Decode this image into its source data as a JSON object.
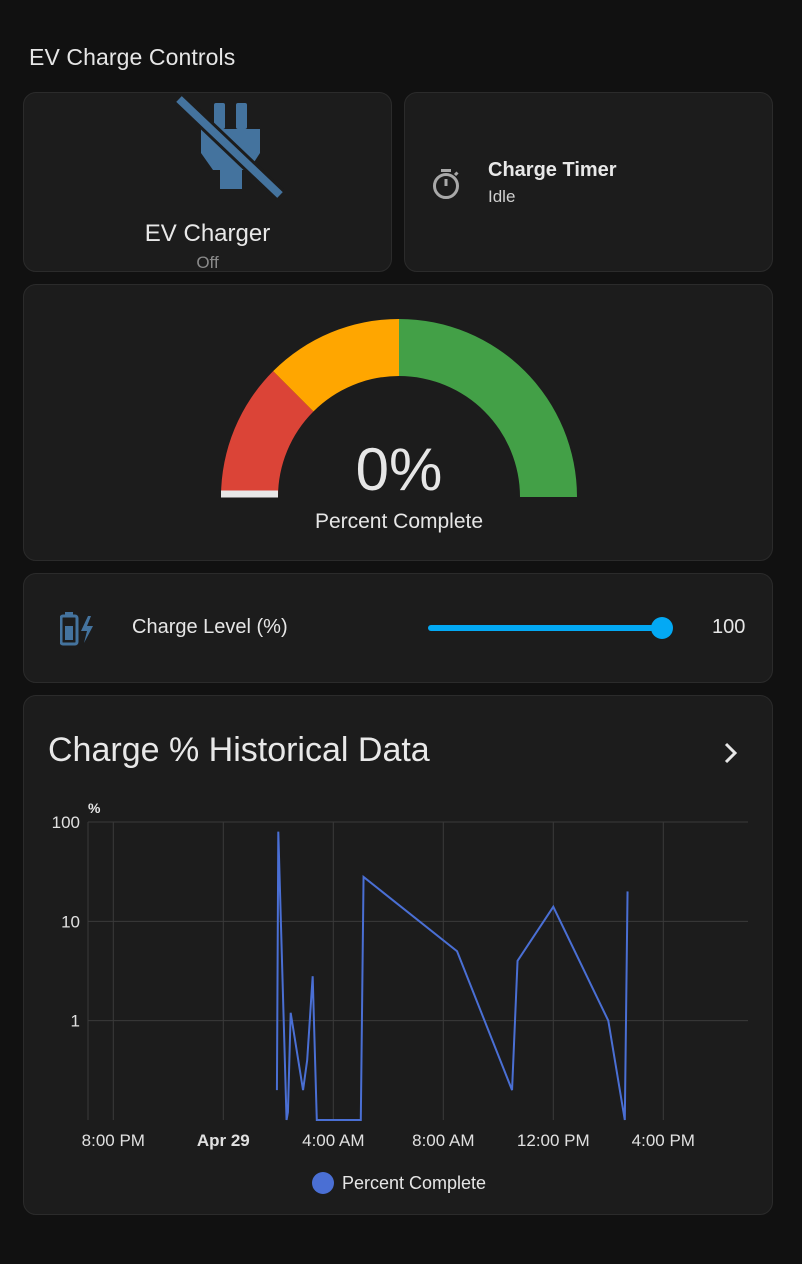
{
  "section_title": "EV Charge Controls",
  "charger": {
    "name": "EV Charger",
    "state": "Off",
    "icon": "power-plug-off-icon",
    "color": "#44739e"
  },
  "timer": {
    "name": "Charge Timer",
    "state": "Idle",
    "icon": "timer-outline-icon"
  },
  "gauge": {
    "value": "0%",
    "fraction": 0,
    "name": "Percent Complete",
    "severity_colors": {
      "red": "#db4437",
      "yellow": "#ffa600",
      "green": "#43a047"
    },
    "segment_breaks": [
      0,
      0.25,
      0.5,
      1.0
    ]
  },
  "slider": {
    "label": "Charge Level (%)",
    "value": "100",
    "fraction": 0.99,
    "icon": "battery-charging-icon",
    "accent": "#03a9f4"
  },
  "history": {
    "title": "Charge % Historical Data",
    "legend": "Percent Complete",
    "line_color": "#4a6fd4"
  },
  "chart_data": {
    "type": "line",
    "y_scale": "log",
    "ylabel": "%",
    "y_ticks": [
      "100",
      "10",
      "1"
    ],
    "x_ticks": [
      "8:00 PM",
      "Apr 29",
      "4:00 AM",
      "8:00 AM",
      "12:00 PM",
      "4:00 PM"
    ],
    "grid": true,
    "legend_position": "bottom",
    "series": [
      {
        "name": "Percent Complete",
        "points": [
          [
            3.95,
            0.2
          ],
          [
            4.0,
            80
          ],
          [
            4.3,
            0.1
          ],
          [
            4.35,
            0.12
          ],
          [
            4.45,
            1.2
          ],
          [
            4.9,
            0.2
          ],
          [
            5.05,
            0.4
          ],
          [
            5.25,
            2.8
          ],
          [
            5.4,
            0.1
          ],
          [
            6.6,
            0.1
          ],
          [
            7.0,
            0.1
          ],
          [
            7.1,
            28
          ],
          [
            10.5,
            5
          ],
          [
            12.5,
            0.2
          ],
          [
            12.7,
            4
          ],
          [
            14.0,
            14
          ],
          [
            16.0,
            1
          ],
          [
            16.6,
            0.1
          ],
          [
            16.7,
            20
          ]
        ]
      }
    ]
  }
}
